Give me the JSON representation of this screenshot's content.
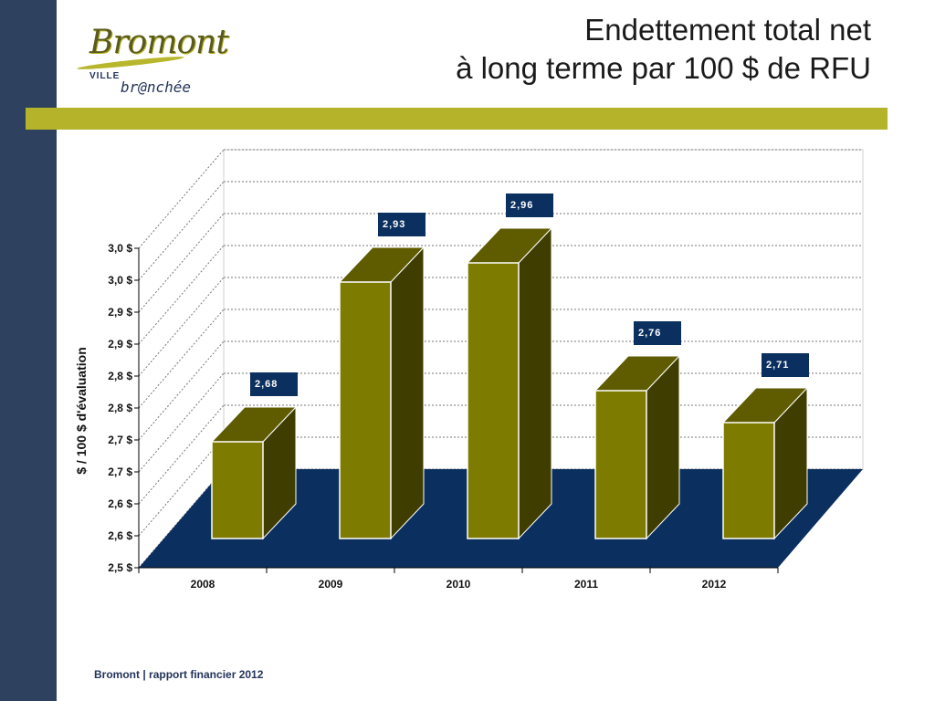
{
  "logo": {
    "main": "Bromont",
    "sub": "VILLE",
    "tagline": "br@nchée"
  },
  "header": {
    "title_line1": "Endettement total net",
    "title_line2": "à long terme par 100 $ de RFU"
  },
  "footer": {
    "text": "Bromont | rapport financier 2012"
  },
  "colors": {
    "side_band": "#2e4260",
    "accent_bar": "#b5b32a",
    "bar_front": "#7e7c00",
    "bar_top": "#5f5c00",
    "bar_side": "#3f3e00",
    "floor": "#0b2f5f",
    "label_box": "#0b2f5f"
  },
  "chart_data": {
    "type": "bar",
    "categories": [
      "2008",
      "2009",
      "2010",
      "2011",
      "2012"
    ],
    "values": [
      2.68,
      2.93,
      2.96,
      2.76,
      2.71
    ],
    "data_labels": [
      "2,68",
      "2,93",
      "2,96",
      "2,76",
      "2,71"
    ],
    "ylabel": "$ / 100 $ d'évaluation",
    "y_ticks": [
      "2,5 $",
      "2,6 $",
      "2,6 $",
      "2,7 $",
      "2,7 $",
      "2,8 $",
      "2,8 $",
      "2,9 $",
      "2,9 $",
      "3,0 $",
      "3,0 $"
    ],
    "ylim": [
      2.5,
      3.0
    ],
    "grid": true,
    "style": "3d-column"
  }
}
